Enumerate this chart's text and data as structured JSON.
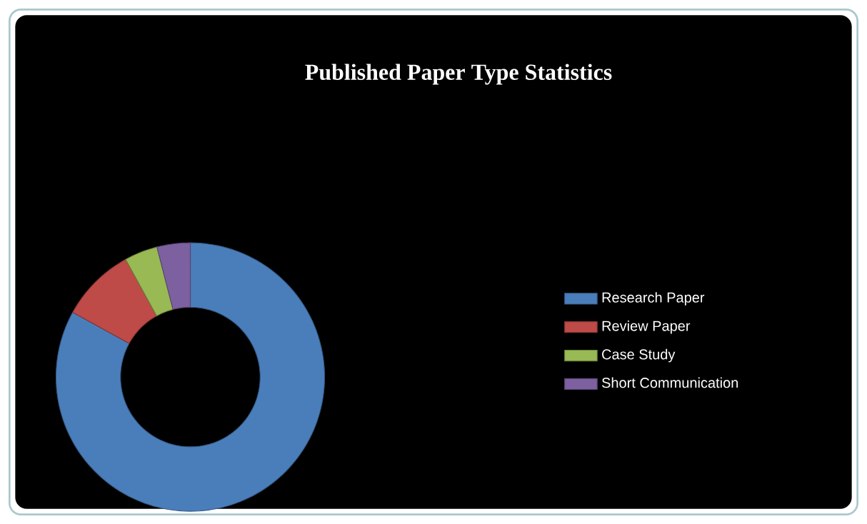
{
  "chart_data": {
    "type": "donut",
    "title": "Published Paper Type Statistics",
    "categories": [
      "Research Paper",
      "Review Paper",
      "Case Study",
      "Short Communication"
    ],
    "values": [
      83,
      9,
      4,
      4
    ],
    "colors": [
      "#4a7ebb",
      "#be4b48",
      "#98b954",
      "#7d60a0"
    ],
    "legend": "right"
  }
}
